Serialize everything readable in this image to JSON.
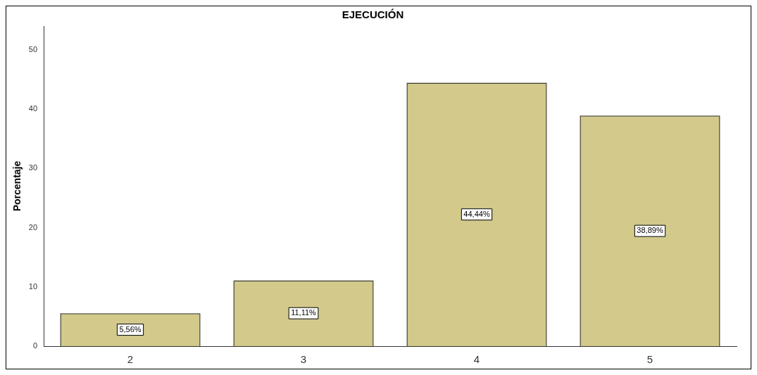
{
  "chart_data": {
    "type": "bar",
    "title": "EJECUCIÓN",
    "ylabel": "Porcentaje",
    "categories": [
      "2",
      "3",
      "4",
      "5"
    ],
    "values": [
      5.56,
      11.11,
      44.44,
      38.89
    ],
    "value_labels": [
      "5,56%",
      "11,11%",
      "44,44%",
      "38,89%"
    ],
    "color": "#d2c98b",
    "ylim": [
      0,
      54
    ],
    "yticks": [
      0,
      10,
      20,
      30,
      40,
      50
    ],
    "grid": false,
    "legend": false
  }
}
